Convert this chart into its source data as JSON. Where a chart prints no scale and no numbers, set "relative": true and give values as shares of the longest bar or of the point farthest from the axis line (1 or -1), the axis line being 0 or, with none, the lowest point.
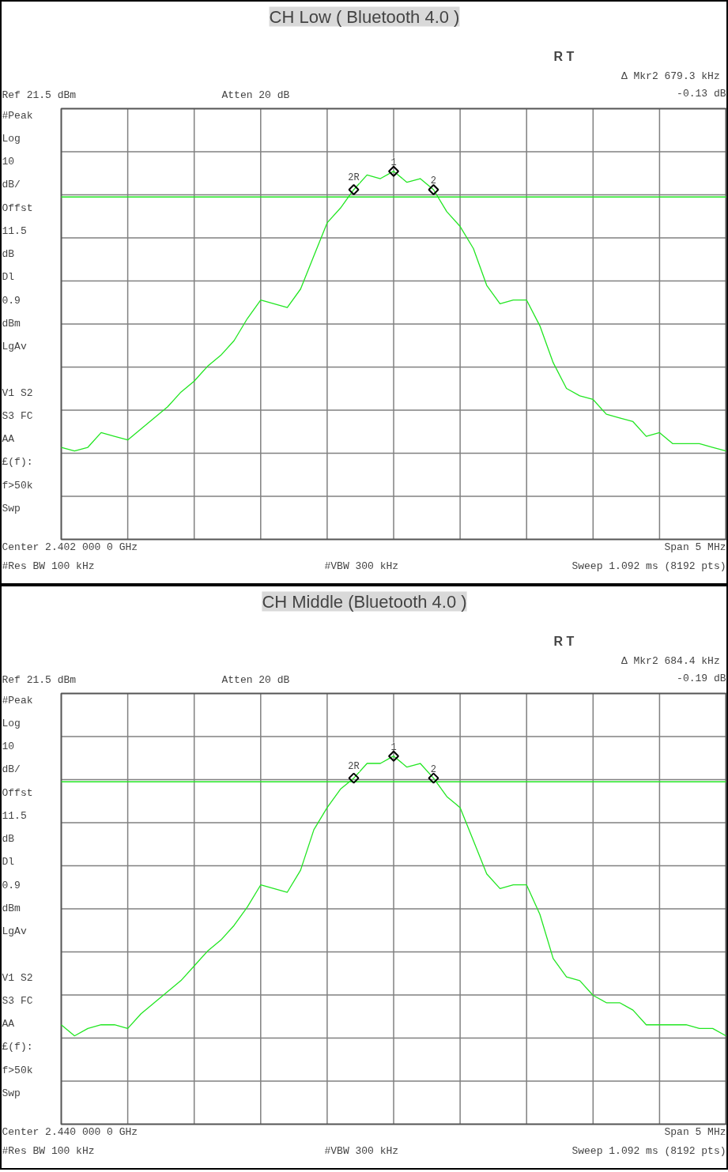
{
  "chart_data": [
    {
      "type": "line",
      "title": "CH Low ( Bluetooth 4.0 )",
      "relative": true,
      "grid": true,
      "categories": [
        null,
        null,
        null,
        null,
        null,
        null,
        null,
        null,
        null,
        null,
        null,
        null,
        null,
        null,
        null,
        null,
        null,
        null,
        null,
        null,
        null,
        null,
        null,
        null,
        null,
        null,
        null,
        null,
        null,
        null,
        null,
        null,
        null,
        null,
        null,
        null,
        null,
        null,
        null,
        null,
        null,
        null,
        null,
        null,
        null,
        null,
        null,
        null,
        null,
        null,
        null
      ],
      "series": [
        {
          "color": "#22e622",
          "line_style": "solid",
          "values": [
            0.25,
            0.24,
            0.25,
            0.29,
            0.28,
            0.27,
            0.3,
            0.33,
            0.36,
            0.4,
            0.43,
            0.47,
            0.5,
            0.54,
            0.6,
            0.65,
            0.64,
            0.63,
            0.68,
            0.77,
            0.86,
            0.9,
            0.95,
            0.99,
            0.98,
            1.0,
            0.97,
            0.98,
            0.95,
            0.89,
            0.85,
            0.79,
            0.69,
            0.64,
            0.65,
            0.65,
            0.58,
            0.48,
            0.41,
            0.39,
            0.38,
            0.34,
            0.33,
            0.32,
            0.28,
            0.29,
            0.26,
            0.26,
            0.26,
            0.25,
            0.24
          ]
        }
      ],
      "ref_lines": [
        {
          "axis": "y",
          "value": 0.93,
          "color": "#22e622"
        }
      ],
      "annotations": [
        "R    T",
        "Δ Mkr2  679.3 kHz",
        "-0.13 dB",
        "Ref 21.5 dBm",
        "Atten 20 dB",
        "#Peak\nLog\n10\ndB/\nOffst\n11.5\ndB\nDl\n0.9\ndBm\nLgAv\n\nV1  S2\nS3  FC\n    AA\n£(f):\nf>50k\nSwp",
        "Center 2.402 000 0 GHz",
        "Span 5 MHz",
        "#Res BW 100 kHz",
        "#VBW 300 kHz",
        "Sweep 1.092 ms (8192 pts)",
        {
          "text": "2R",
          "y": 0.95
        },
        {
          "text": "1",
          "y": 1.0
        },
        {
          "text": "2",
          "y": 0.95
        }
      ]
    },
    {
      "type": "line",
      "title": "CH Middle (Bluetooth 4.0 )",
      "relative": true,
      "grid": true,
      "categories": [
        null,
        null,
        null,
        null,
        null,
        null,
        null,
        null,
        null,
        null,
        null,
        null,
        null,
        null,
        null,
        null,
        null,
        null,
        null,
        null,
        null,
        null,
        null,
        null,
        null,
        null,
        null,
        null,
        null,
        null,
        null,
        null,
        null,
        null,
        null,
        null,
        null,
        null,
        null,
        null,
        null,
        null,
        null,
        null,
        null,
        null,
        null,
        null,
        null,
        null,
        null
      ],
      "series": [
        {
          "color": "#22e622",
          "line_style": "solid",
          "values": [
            0.27,
            0.24,
            0.26,
            0.27,
            0.27,
            0.26,
            0.3,
            0.33,
            0.36,
            0.39,
            0.43,
            0.47,
            0.5,
            0.54,
            0.59,
            0.65,
            0.64,
            0.63,
            0.69,
            0.8,
            0.86,
            0.91,
            0.94,
            0.98,
            0.98,
            1.0,
            0.97,
            0.98,
            0.94,
            0.89,
            0.86,
            0.77,
            0.68,
            0.64,
            0.65,
            0.65,
            0.57,
            0.45,
            0.4,
            0.39,
            0.35,
            0.33,
            0.33,
            0.31,
            0.27,
            0.27,
            0.27,
            0.27,
            0.26,
            0.26,
            0.24
          ]
        }
      ],
      "ref_lines": [
        {
          "axis": "y",
          "value": 0.93,
          "color": "#22e622"
        }
      ],
      "annotations": [
        "R    T",
        "Δ Mkr2  684.4 kHz",
        "-0.19 dB",
        "Ref 21.5 dBm",
        "Atten 20 dB",
        "#Peak\nLog\n10\ndB/\nOffst\n11.5\ndB\nDl\n0.9\ndBm\nLgAv\n\nV1  S2\nS3  FC\n    AA\n£(f):\nf>50k\nSwp",
        "Center 2.440 000 0 GHz",
        "Span 5 MHz",
        "#Res BW 100 kHz",
        "#VBW 300 kHz",
        "Sweep 1.092 ms (8192 pts)",
        {
          "text": "2R",
          "y": 0.94
        },
        {
          "text": "1",
          "y": 1.0
        },
        {
          "text": "2",
          "y": 0.94
        }
      ]
    }
  ]
}
